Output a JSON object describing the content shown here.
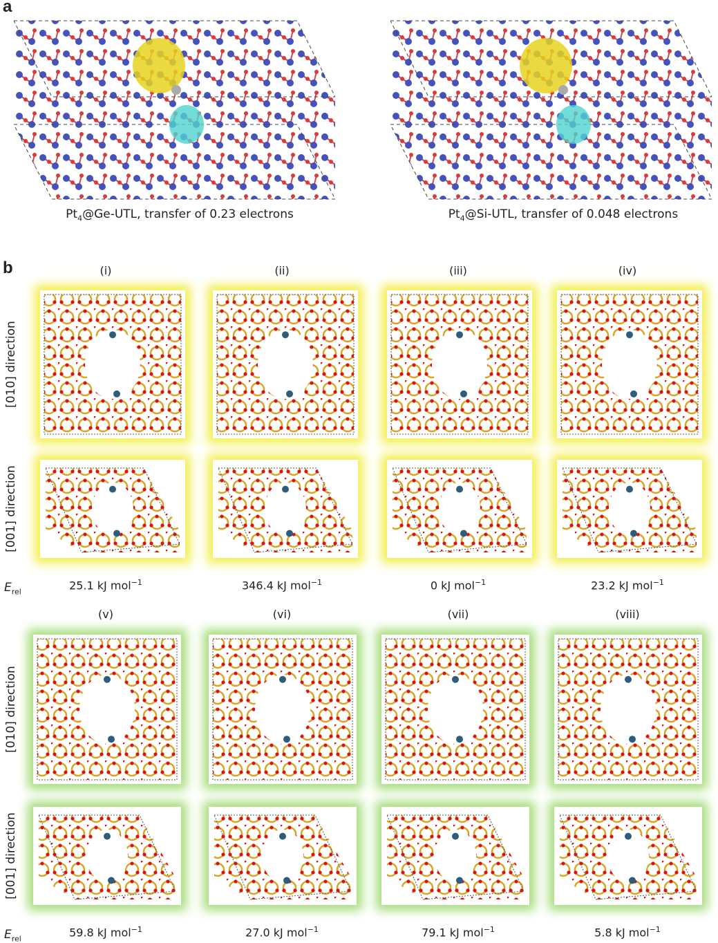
{
  "section_a": {
    "label": "a",
    "panels": [
      {
        "formula": "Pt",
        "subscript": "4",
        "caption": "@Ge-UTL, transfer of 0.23 electrons"
      },
      {
        "formula": "Pt",
        "subscript": "4",
        "caption": "@Si-UTL, transfer of 0.048 electrons"
      }
    ]
  },
  "section_b": {
    "label": "b",
    "groups": [
      {
        "row_labels": [
          "[010] direction",
          "[001] direction"
        ],
        "energy_symbol": "E",
        "energy_subscript": "rel",
        "columns": [
          {
            "label": "(i)",
            "energy": "25.1 kJ mol",
            "exponent": "−1"
          },
          {
            "label": "(ii)",
            "energy": "346.4 kJ mol",
            "exponent": "−1"
          },
          {
            "label": "(iii)",
            "energy": "0 kJ mol",
            "exponent": "−1"
          },
          {
            "label": "(iv)",
            "energy": "23.2 kJ mol",
            "exponent": "−1"
          }
        ]
      },
      {
        "row_labels": [
          "[010] direction",
          "[001] direction"
        ],
        "energy_symbol": "E",
        "energy_subscript": "rel",
        "columns": [
          {
            "label": "(v)",
            "energy": "59.8 kJ mol",
            "exponent": "−1"
          },
          {
            "label": "(vi)",
            "energy": "27.0 kJ mol",
            "exponent": "−1"
          },
          {
            "label": "(vii)",
            "energy": "79.1 kJ mol",
            "exponent": "−1"
          },
          {
            "label": "(viii)",
            "energy": "5.8 kJ mol",
            "exponent": "−1"
          }
        ]
      }
    ]
  }
}
